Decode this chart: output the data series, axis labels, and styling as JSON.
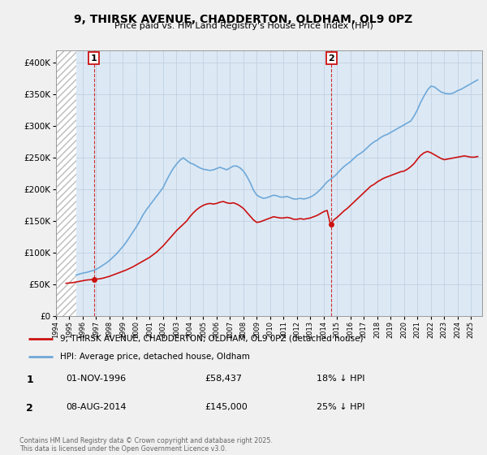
{
  "title": "9, THIRSK AVENUE, CHADDERTON, OLDHAM, OL9 0PZ",
  "subtitle": "Price paid vs. HM Land Registry's House Price Index (HPI)",
  "background_color": "#f0f0f0",
  "plot_bg_color": "#dce9f5",
  "hatch_bg_color": "#ffffff",
  "hpi_color": "#6fa8d8",
  "price_color": "#cc1111",
  "ylim": [
    0,
    420000
  ],
  "yticks": [
    0,
    50000,
    100000,
    150000,
    200000,
    250000,
    300000,
    350000,
    400000
  ],
  "xlim_start": 1994.0,
  "xlim_end": 2025.83,
  "hatch_end": 1995.5,
  "purchases": [
    {
      "year": 1996.83,
      "price": 58437,
      "label": "1"
    },
    {
      "year": 2014.58,
      "price": 145000,
      "label": "2"
    }
  ],
  "legend_property_label": "9, THIRSK AVENUE, CHADDERTON, OLDHAM, OL9 0PZ (detached house)",
  "legend_hpi_label": "HPI: Average price, detached house, Oldham",
  "table_rows": [
    {
      "num": "1",
      "date": "01-NOV-1996",
      "price": "£58,437",
      "change": "18% ↓ HPI"
    },
    {
      "num": "2",
      "date": "08-AUG-2014",
      "price": "£145,000",
      "change": "25% ↓ HPI"
    }
  ],
  "footer": "Contains HM Land Registry data © Crown copyright and database right 2025.\nThis data is licensed under the Open Government Licence v3.0.",
  "hpi_data_x": [
    1995.5,
    1995.75,
    1996.0,
    1996.25,
    1996.5,
    1996.75,
    1997.0,
    1997.25,
    1997.5,
    1997.75,
    1998.0,
    1998.25,
    1998.5,
    1998.75,
    1999.0,
    1999.25,
    1999.5,
    1999.75,
    2000.0,
    2000.25,
    2000.5,
    2000.75,
    2001.0,
    2001.25,
    2001.5,
    2001.75,
    2002.0,
    2002.25,
    2002.5,
    2002.75,
    2003.0,
    2003.25,
    2003.5,
    2003.75,
    2004.0,
    2004.25,
    2004.5,
    2004.75,
    2005.0,
    2005.25,
    2005.5,
    2005.75,
    2006.0,
    2006.25,
    2006.5,
    2006.75,
    2007.0,
    2007.25,
    2007.5,
    2007.75,
    2008.0,
    2008.25,
    2008.5,
    2008.75,
    2009.0,
    2009.25,
    2009.5,
    2009.75,
    2010.0,
    2010.25,
    2010.5,
    2010.75,
    2011.0,
    2011.25,
    2011.5,
    2011.75,
    2012.0,
    2012.25,
    2012.5,
    2012.75,
    2013.0,
    2013.25,
    2013.5,
    2013.75,
    2014.0,
    2014.25,
    2014.5,
    2014.75,
    2015.0,
    2015.25,
    2015.5,
    2015.75,
    2016.0,
    2016.25,
    2016.5,
    2016.75,
    2017.0,
    2017.25,
    2017.5,
    2017.75,
    2018.0,
    2018.25,
    2018.5,
    2018.75,
    2019.0,
    2019.25,
    2019.5,
    2019.75,
    2020.0,
    2020.25,
    2020.5,
    2020.75,
    2021.0,
    2021.25,
    2021.5,
    2021.75,
    2022.0,
    2022.25,
    2022.5,
    2022.75,
    2023.0,
    2023.25,
    2023.5,
    2023.75,
    2024.0,
    2024.25,
    2024.5,
    2024.75,
    2025.0,
    2025.25,
    2025.5
  ],
  "hpi_data_y": [
    65000,
    66500,
    68000,
    69000,
    70500,
    72000,
    74000,
    77000,
    80500,
    84000,
    88000,
    93000,
    98000,
    104000,
    110000,
    117000,
    125000,
    133000,
    141000,
    150000,
    160000,
    168000,
    175000,
    182000,
    189000,
    196000,
    203000,
    214000,
    224000,
    233000,
    240000,
    246000,
    250000,
    246000,
    242000,
    240000,
    237000,
    234000,
    232000,
    231000,
    230000,
    231000,
    233000,
    235000,
    233000,
    231000,
    234000,
    237000,
    237000,
    234000,
    229000,
    221000,
    211000,
    199000,
    191000,
    188000,
    186000,
    187000,
    189000,
    191000,
    190000,
    188000,
    188000,
    189000,
    187000,
    185000,
    185000,
    186000,
    185000,
    186000,
    188000,
    191000,
    195000,
    200000,
    206000,
    212000,
    216000,
    220000,
    225000,
    231000,
    236000,
    240000,
    244000,
    249000,
    254000,
    257000,
    261000,
    266000,
    271000,
    275000,
    278000,
    282000,
    285000,
    287000,
    290000,
    293000,
    296000,
    299000,
    302000,
    305000,
    308000,
    316000,
    326000,
    338000,
    348000,
    357000,
    363000,
    362000,
    358000,
    354000,
    352000,
    351000,
    351000,
    353000,
    356000,
    358000,
    361000,
    364000,
    367000,
    370000,
    373000
  ],
  "price_data_x": [
    1994.75,
    1995.0,
    1995.25,
    1995.5,
    1995.75,
    1996.0,
    1996.25,
    1996.5,
    1996.75,
    1997.0,
    1997.25,
    1997.5,
    1997.75,
    1998.0,
    1998.25,
    1998.5,
    1998.75,
    1999.0,
    1999.25,
    1999.5,
    1999.75,
    2000.0,
    2000.25,
    2000.5,
    2000.75,
    2001.0,
    2001.25,
    2001.5,
    2001.75,
    2002.0,
    2002.25,
    2002.5,
    2002.75,
    2003.0,
    2003.25,
    2003.5,
    2003.75,
    2004.0,
    2004.25,
    2004.5,
    2004.75,
    2005.0,
    2005.25,
    2005.5,
    2005.75,
    2006.0,
    2006.25,
    2006.5,
    2006.75,
    2007.0,
    2007.25,
    2007.5,
    2007.75,
    2008.0,
    2008.25,
    2008.5,
    2008.75,
    2009.0,
    2009.25,
    2009.5,
    2009.75,
    2010.0,
    2010.25,
    2010.5,
    2010.75,
    2011.0,
    2011.25,
    2011.5,
    2011.75,
    2012.0,
    2012.25,
    2012.5,
    2012.75,
    2013.0,
    2013.25,
    2013.5,
    2013.75,
    2014.0,
    2014.25,
    2014.5,
    2014.75,
    2015.0,
    2015.25,
    2015.5,
    2015.75,
    2016.0,
    2016.25,
    2016.5,
    2016.75,
    2017.0,
    2017.25,
    2017.5,
    2017.75,
    2018.0,
    2018.25,
    2018.5,
    2018.75,
    2019.0,
    2019.25,
    2019.5,
    2019.75,
    2020.0,
    2020.25,
    2020.5,
    2020.75,
    2021.0,
    2021.25,
    2021.5,
    2021.75,
    2022.0,
    2022.25,
    2022.5,
    2022.75,
    2023.0,
    2023.25,
    2023.5,
    2023.75,
    2024.0,
    2024.25,
    2024.5,
    2024.75,
    2025.0,
    2025.25,
    2025.5
  ],
  "price_data_y": [
    52000,
    52500,
    53000,
    54000,
    55000,
    56000,
    57000,
    57500,
    58000,
    58437,
    59000,
    60000,
    61500,
    63000,
    65000,
    67000,
    69000,
    71000,
    73000,
    75500,
    78000,
    81000,
    84000,
    87000,
    90000,
    93000,
    97000,
    101000,
    106000,
    111000,
    117000,
    123000,
    129000,
    135000,
    140000,
    145000,
    150000,
    157000,
    163000,
    168000,
    172000,
    175000,
    177000,
    178000,
    177000,
    178000,
    180000,
    181000,
    179000,
    178000,
    179000,
    177000,
    174000,
    170000,
    164000,
    158000,
    152000,
    148000,
    149000,
    151000,
    153000,
    155000,
    157000,
    156000,
    155000,
    155000,
    156000,
    155000,
    153000,
    153000,
    154000,
    153000,
    154000,
    155000,
    157000,
    159000,
    162000,
    165000,
    167000,
    145000,
    152000,
    156000,
    161000,
    166000,
    170000,
    175000,
    180000,
    185000,
    190000,
    195000,
    200000,
    205000,
    208000,
    212000,
    215000,
    218000,
    220000,
    222000,
    224000,
    226000,
    228000,
    229000,
    232000,
    236000,
    241000,
    248000,
    254000,
    258000,
    260000,
    258000,
    255000,
    252000,
    249000,
    247000,
    248000,
    249000,
    250000,
    251000,
    252000,
    253000,
    252000,
    251000,
    251000,
    252000
  ]
}
